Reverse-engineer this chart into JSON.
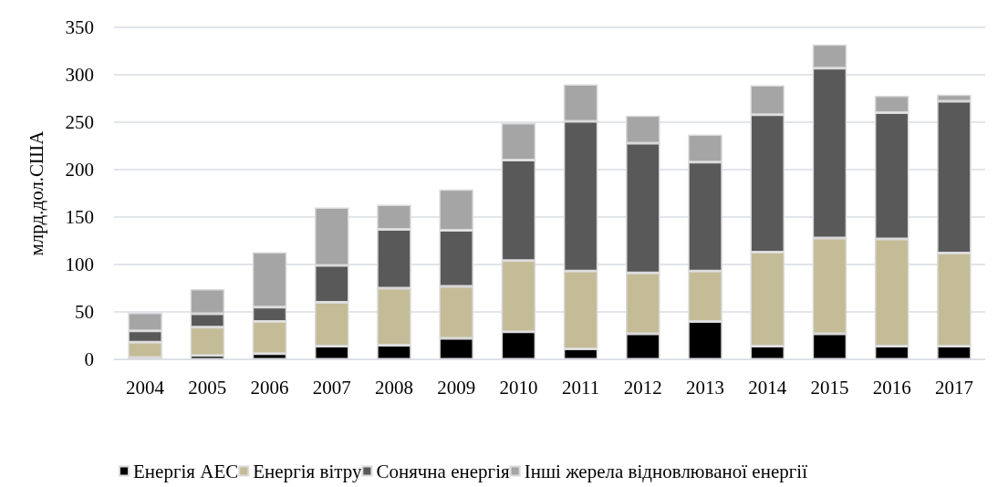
{
  "chart_data": {
    "type": "bar",
    "stacked": true,
    "ylabel": "млрд.дол.США",
    "categories": [
      "2004",
      "2005",
      "2006",
      "2007",
      "2008",
      "2009",
      "2010",
      "2011",
      "2012",
      "2013",
      "2014",
      "2015",
      "2016",
      "2017"
    ],
    "series": [
      {
        "name": "Енергія АЕС",
        "color": "#000000",
        "values": [
          2,
          4,
          6,
          14,
          15,
          22,
          29,
          11,
          27,
          40,
          14,
          27,
          14,
          14
        ]
      },
      {
        "name": "Енергія вітру",
        "color": "#c4bc96",
        "values": [
          16,
          30,
          34,
          46,
          60,
          55,
          75,
          82,
          64,
          53,
          99,
          101,
          113,
          98
        ]
      },
      {
        "name": "Сонячна енергія",
        "color": "#595959",
        "values": [
          12,
          14,
          15,
          39,
          62,
          59,
          106,
          158,
          137,
          115,
          145,
          179,
          133,
          160
        ]
      },
      {
        "name": "Інші жерела відновлюваної енергії",
        "color": "#a5a5a5",
        "values": [
          19,
          26,
          58,
          61,
          26,
          43,
          39,
          39,
          29,
          29,
          31,
          25,
          18,
          7
        ]
      }
    ],
    "ylim": [
      0,
      350
    ],
    "yticks": [
      0,
      50,
      100,
      150,
      200,
      250,
      300,
      350
    ],
    "grid": "y",
    "legend": "bottom"
  }
}
